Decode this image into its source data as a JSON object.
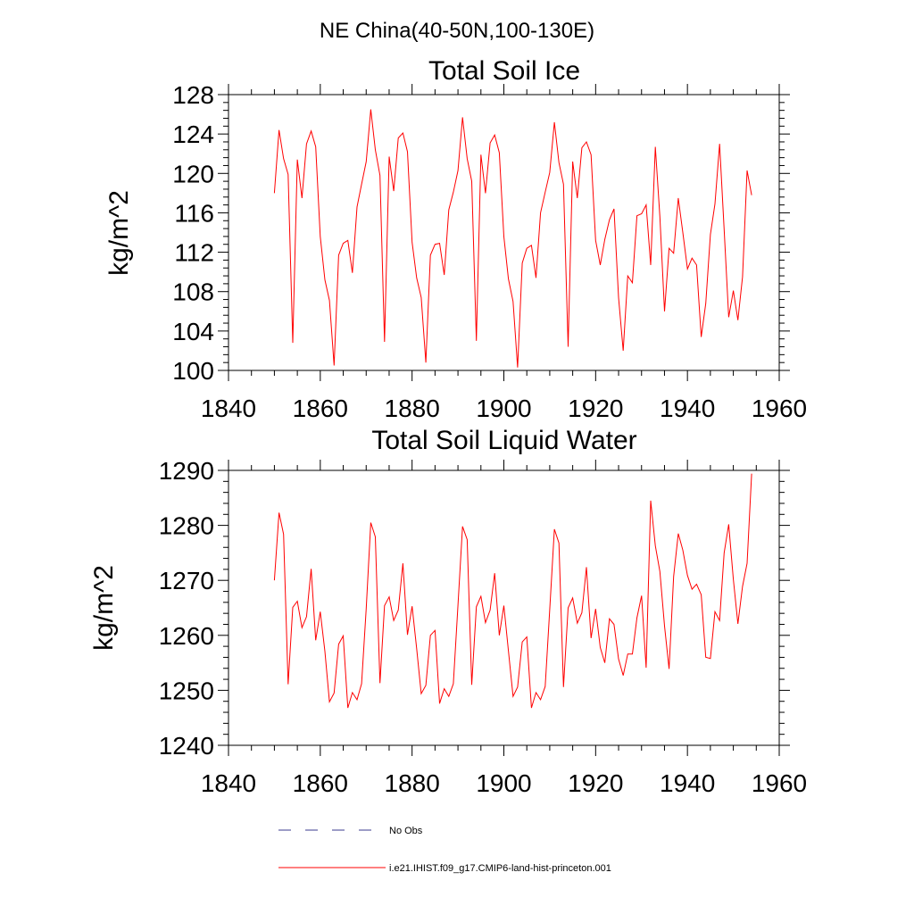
{
  "figure_title": "NE China(40-50N,100-130E)",
  "legend": {
    "entries": [
      {
        "label": "No Obs",
        "color": "#3b3b8f",
        "dash": true
      },
      {
        "label": "i.e21.IHIST.f09_g17.CMIP6-land-hist-princeton.001",
        "color": "#ff0000",
        "dash": false
      }
    ]
  },
  "chart_data": [
    {
      "type": "line",
      "title": "Total Soil Ice",
      "ylabel": "kg/m^2",
      "xlabel": "",
      "xlim": [
        1840,
        1960
      ],
      "ylim": [
        100,
        128
      ],
      "x_ticks": [
        1840,
        1860,
        1880,
        1900,
        1920,
        1940,
        1960
      ],
      "y_ticks": [
        100,
        104,
        108,
        112,
        116,
        120,
        124,
        128
      ],
      "series": [
        {
          "color": "#ff0000",
          "x": [
            1850,
            1851,
            1852,
            1853,
            1854,
            1855,
            1856,
            1857,
            1858,
            1859,
            1860,
            1861,
            1862,
            1863,
            1864,
            1865,
            1866,
            1867,
            1868,
            1869,
            1870,
            1871,
            1872,
            1873,
            1874,
            1875,
            1876,
            1877,
            1878,
            1879,
            1880,
            1881,
            1882,
            1883,
            1884,
            1885,
            1886,
            1887,
            1888,
            1889,
            1890,
            1891,
            1892,
            1893,
            1894,
            1895,
            1896,
            1897,
            1898,
            1899,
            1900,
            1901,
            1902,
            1903,
            1904,
            1905,
            1906,
            1907,
            1908,
            1909,
            1910,
            1911,
            1912,
            1913,
            1914,
            1915,
            1916,
            1917,
            1918,
            1919,
            1920,
            1921,
            1922,
            1923,
            1924,
            1925,
            1926,
            1927,
            1928,
            1929,
            1930,
            1931,
            1932,
            1933,
            1934,
            1935,
            1936,
            1937,
            1938,
            1939,
            1940,
            1941,
            1942,
            1943,
            1944,
            1945,
            1946,
            1947,
            1948,
            1949,
            1950,
            1951,
            1952,
            1953,
            1954
          ],
          "y": [
            118.0,
            124.4,
            121.5,
            119.9,
            102.8,
            121.4,
            117.5,
            123.0,
            124.3,
            122.7,
            113.6,
            109.2,
            107.1,
            100.5,
            111.7,
            112.9,
            113.2,
            109.9,
            116.6,
            118.9,
            121.2,
            126.5,
            122.4,
            119.8,
            102.9,
            121.7,
            118.2,
            123.6,
            124.1,
            122.2,
            113.0,
            109.4,
            107.4,
            100.8,
            111.7,
            112.8,
            112.9,
            109.7,
            116.3,
            118.1,
            120.3,
            125.7,
            121.5,
            119.2,
            103.0,
            121.9,
            118.0,
            123.1,
            123.9,
            122.1,
            113.6,
            109.3,
            107.0,
            100.3,
            110.9,
            112.4,
            112.7,
            109.4,
            116.0,
            118.1,
            120.1,
            125.2,
            121.1,
            118.9,
            102.4,
            121.2,
            117.5,
            122.6,
            123.2,
            121.9,
            113.2,
            110.7,
            113.3,
            115.3,
            116.4,
            107.4,
            102.0,
            109.6,
            108.9,
            115.7,
            115.9,
            116.8,
            110.7,
            122.7,
            115.6,
            106.0,
            112.4,
            111.9,
            117.5,
            114.0,
            110.3,
            111.4,
            110.7,
            103.4,
            106.8,
            113.8,
            116.9,
            123.0,
            114.3,
            105.4,
            108.1,
            105.1,
            109.5,
            120.3,
            117.8
          ]
        }
      ]
    },
    {
      "type": "line",
      "title": "Total Soil Liquid Water",
      "ylabel": "kg/m^2",
      "xlabel": "",
      "xlim": [
        1840,
        1960
      ],
      "ylim": [
        1240,
        1290
      ],
      "x_ticks": [
        1840,
        1860,
        1880,
        1900,
        1920,
        1940,
        1960
      ],
      "y_ticks": [
        1240,
        1250,
        1260,
        1270,
        1280,
        1290
      ],
      "series": [
        {
          "color": "#ff0000",
          "x": [
            1850,
            1851,
            1852,
            1853,
            1854,
            1855,
            1856,
            1857,
            1858,
            1859,
            1860,
            1861,
            1862,
            1863,
            1864,
            1865,
            1866,
            1867,
            1868,
            1869,
            1870,
            1871,
            1872,
            1873,
            1874,
            1875,
            1876,
            1877,
            1878,
            1879,
            1880,
            1881,
            1882,
            1883,
            1884,
            1885,
            1886,
            1887,
            1888,
            1889,
            1890,
            1891,
            1892,
            1893,
            1894,
            1895,
            1896,
            1897,
            1898,
            1899,
            1900,
            1901,
            1902,
            1903,
            1904,
            1905,
            1906,
            1907,
            1908,
            1909,
            1910,
            1911,
            1912,
            1913,
            1914,
            1915,
            1916,
            1917,
            1918,
            1919,
            1920,
            1921,
            1922,
            1923,
            1924,
            1925,
            1926,
            1927,
            1928,
            1929,
            1930,
            1931,
            1932,
            1933,
            1934,
            1935,
            1936,
            1937,
            1938,
            1939,
            1940,
            1941,
            1942,
            1943,
            1944,
            1945,
            1946,
            1947,
            1948,
            1949,
            1950,
            1951,
            1952,
            1953,
            1954
          ],
          "y": [
            1270.0,
            1282.3,
            1278.4,
            1251.1,
            1265.1,
            1266.2,
            1261.4,
            1263.4,
            1272.1,
            1259.1,
            1264.3,
            1257.1,
            1247.9,
            1249.5,
            1258.4,
            1259.9,
            1246.8,
            1249.6,
            1248.3,
            1251.2,
            1264.9,
            1280.5,
            1277.9,
            1251.3,
            1265.4,
            1267.0,
            1262.7,
            1264.6,
            1273.1,
            1260.1,
            1265.3,
            1257.6,
            1249.4,
            1250.9,
            1260.0,
            1260.9,
            1247.6,
            1250.3,
            1248.9,
            1251.2,
            1265.5,
            1279.8,
            1277.4,
            1251.0,
            1265.2,
            1267.1,
            1262.3,
            1264.6,
            1271.3,
            1260.0,
            1265.4,
            1257.2,
            1248.9,
            1250.6,
            1258.8,
            1259.7,
            1246.8,
            1249.6,
            1248.3,
            1250.7,
            1264.7,
            1279.3,
            1276.8,
            1250.6,
            1265.0,
            1266.8,
            1262.2,
            1264.1,
            1272.4,
            1259.5,
            1264.8,
            1257.8,
            1255.0,
            1263.0,
            1262.0,
            1255.7,
            1252.7,
            1256.6,
            1256.6,
            1263.2,
            1267.2,
            1254.1,
            1284.5,
            1276.3,
            1271.6,
            1261.7,
            1253.9,
            1270.7,
            1278.5,
            1275.5,
            1270.9,
            1268.4,
            1269.3,
            1267.4,
            1256.0,
            1255.8,
            1264.3,
            1262.7,
            1275.0,
            1280.2,
            1270.2,
            1262.1,
            1268.9,
            1273.1,
            1289.4
          ]
        }
      ]
    }
  ]
}
